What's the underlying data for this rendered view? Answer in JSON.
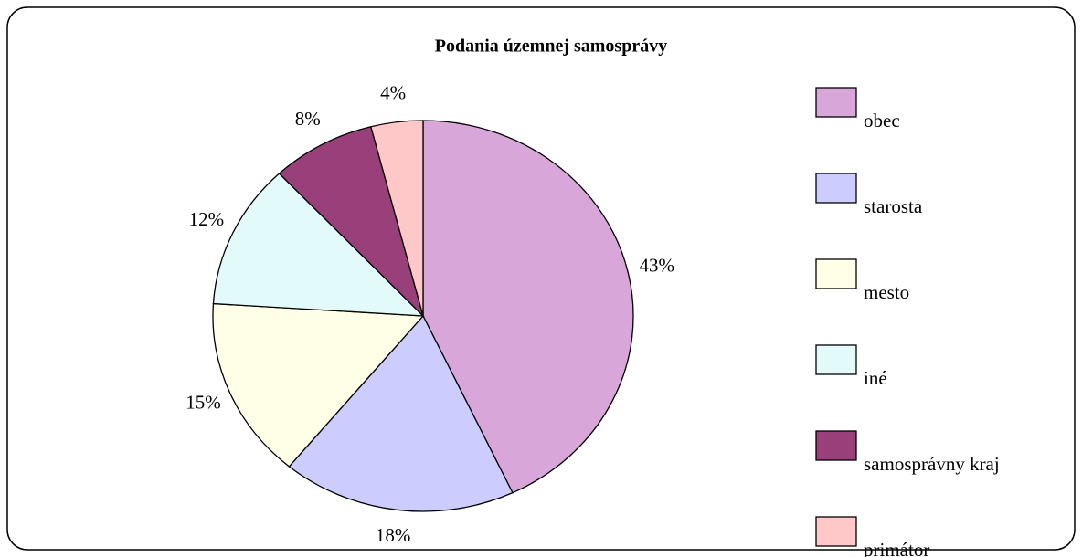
{
  "chart_data": {
    "type": "pie",
    "title": "Podania územnej samosprávy",
    "categories": [
      "obec",
      "starosta",
      "mesto",
      "iné",
      "samosprávny kraj",
      "primátor"
    ],
    "values": [
      43,
      18,
      15,
      12,
      8,
      4
    ],
    "value_labels": [
      "43%",
      "18%",
      "15%",
      "12%",
      "8%",
      "4%"
    ],
    "colors": [
      "#d9a6d9",
      "#ccccff",
      "#ffffe8",
      "#e3fafa",
      "#99407a",
      "#ffc8c8"
    ],
    "legend": "right"
  }
}
